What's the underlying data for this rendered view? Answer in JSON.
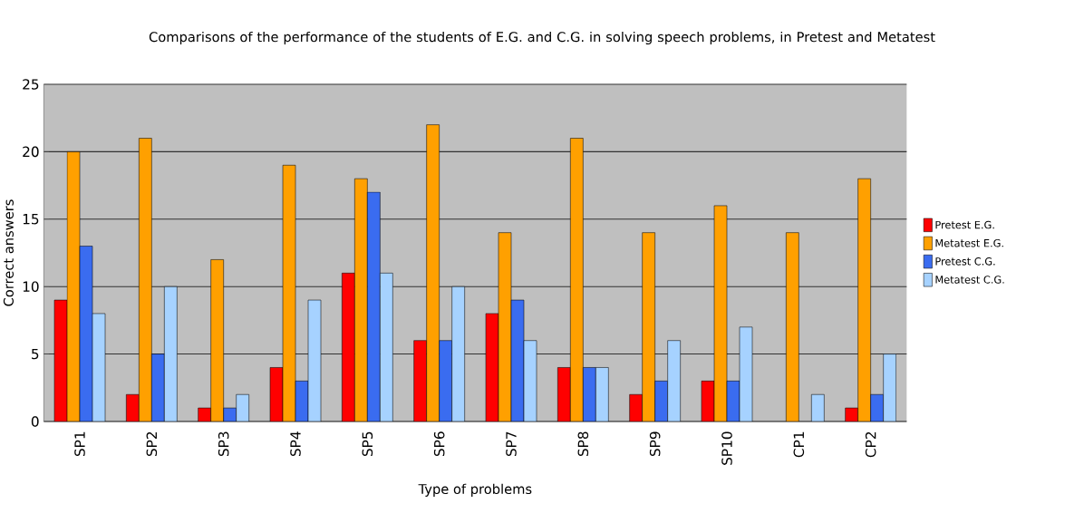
{
  "chart_data": {
    "type": "bar",
    "title": "Comparisons of the performance of the students of E.G. and C.G. in solving speech problems, in Pretest and Metatest",
    "xlabel": "Type of problems",
    "ylabel": "Correct answers",
    "categories": [
      "SP1",
      "SP2",
      "SP3",
      "SP4",
      "SP5",
      "SP6",
      "SP7",
      "SP8",
      "SP9",
      "SP10",
      "CP1",
      "CP2"
    ],
    "series": [
      {
        "name": "Pretest E.G.",
        "color": "#ff0000",
        "values": [
          9,
          2,
          1,
          4,
          11,
          6,
          8,
          4,
          2,
          3,
          null,
          1
        ]
      },
      {
        "name": "Metatest E.G.",
        "color": "#ffa000",
        "values": [
          20,
          21,
          12,
          19,
          18,
          22,
          14,
          21,
          14,
          16,
          14,
          18
        ]
      },
      {
        "name": "Pretest C.G.",
        "color": "#3a6cf0",
        "values": [
          13,
          5,
          1,
          3,
          17,
          6,
          9,
          4,
          3,
          3,
          null,
          2
        ]
      },
      {
        "name": "Metatest C.G.",
        "color": "#a6d2ff",
        "values": [
          8,
          10,
          2,
          9,
          11,
          10,
          6,
          4,
          6,
          7,
          2,
          5
        ]
      }
    ],
    "ylim": [
      0,
      25
    ],
    "yticks": [
      0,
      5,
      10,
      15,
      20,
      25
    ],
    "grid": "y",
    "legend": "right"
  }
}
